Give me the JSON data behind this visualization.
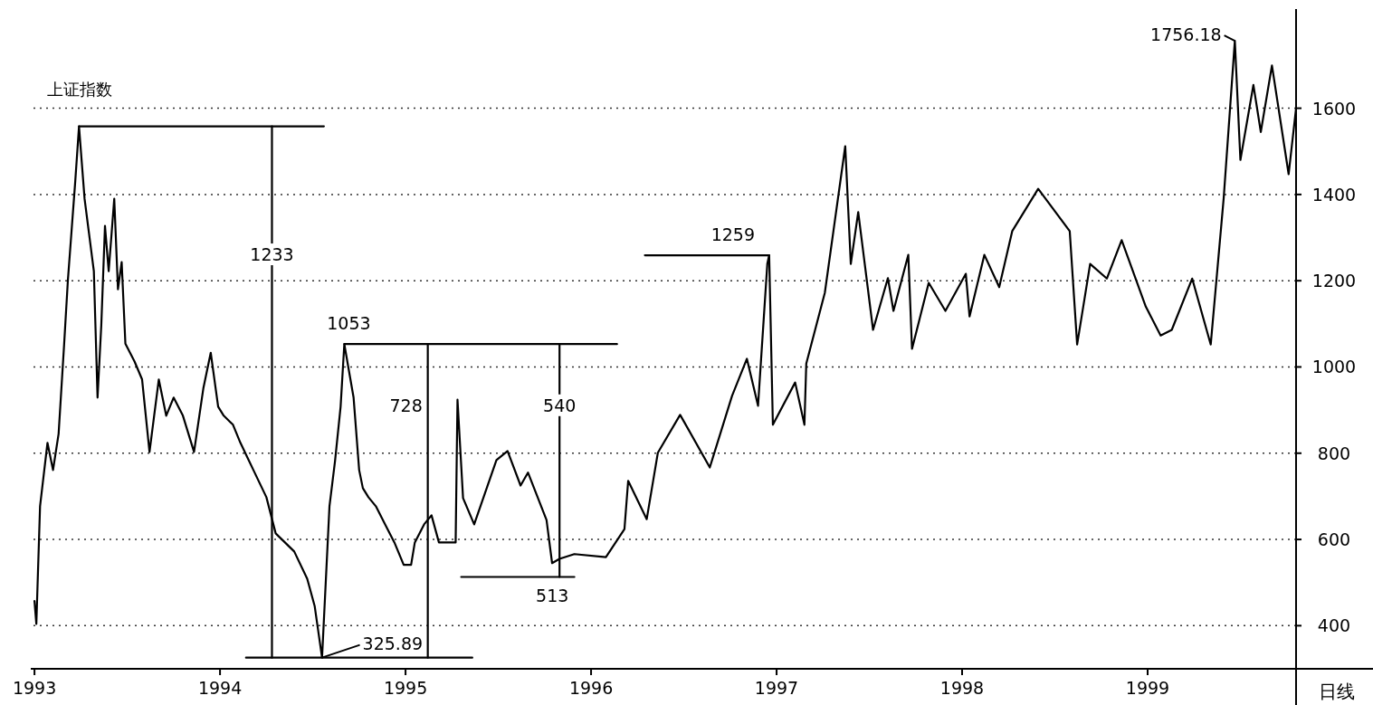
{
  "chart_data": {
    "type": "line",
    "title": "上证指数",
    "x": [
      1993.0,
      1993.01,
      1993.03,
      1993.07,
      1993.1,
      1993.13,
      1993.16,
      1993.18,
      1993.22,
      1993.24,
      1993.27,
      1993.32,
      1993.34,
      1993.36,
      1993.38,
      1993.4,
      1993.43,
      1993.45,
      1993.47,
      1993.49,
      1993.54,
      1993.58,
      1993.62,
      1993.67,
      1993.71,
      1993.75,
      1993.8,
      1993.86,
      1993.91,
      1993.95,
      1993.99,
      1994.02,
      1994.07,
      1994.11,
      1994.18,
      1994.25,
      1994.3,
      1994.35,
      1994.4,
      1994.47,
      1994.51,
      1994.55,
      1994.59,
      1994.62,
      1994.65,
      1994.67,
      1994.72,
      1994.75,
      1994.77,
      1994.8,
      1994.84,
      1994.89,
      1994.94,
      1994.99,
      1995.03,
      1995.05,
      1995.1,
      1995.14,
      1995.18,
      1995.27,
      1995.28,
      1995.31,
      1995.37,
      1995.49,
      1995.55,
      1995.62,
      1995.66,
      1995.76,
      1995.79,
      1995.83,
      1995.91,
      1996.08,
      1996.18,
      1996.2,
      1996.3,
      1996.36,
      1996.48,
      1996.64,
      1996.76,
      1996.84,
      1996.9,
      1996.95,
      1996.96,
      1996.98,
      1997.1,
      1997.15,
      1997.16,
      1997.26,
      1997.37,
      1997.4,
      1997.44,
      1997.52,
      1997.6,
      1997.63,
      1997.71,
      1997.73,
      1997.82,
      1997.91,
      1998.02,
      1998.04,
      1998.12,
      1998.2,
      1998.27,
      1998.41,
      1998.58,
      1998.62,
      1998.69,
      1998.78,
      1998.86,
      1998.99,
      1999.07,
      1999.13,
      1999.24,
      1999.34,
      1999.41,
      1999.47,
      1999.5,
      1999.57,
      1999.61,
      1999.67,
      1999.76,
      1999.8
    ],
    "series": [
      {
        "color": "#000000",
        "values": [
          457,
          404,
          677,
          824,
          761,
          845,
          1054,
          1201,
          1432,
          1558,
          1390,
          1222,
          929,
          1096,
          1327,
          1222,
          1390,
          1180,
          1243,
          1054,
          1012,
          971,
          803,
          971,
          887,
          929,
          887,
          803,
          950,
          1033,
          908,
          887,
          866,
          824,
          761,
          698,
          614,
          593,
          572,
          509,
          446,
          325.89,
          677,
          782,
          908,
          1053,
          929,
          761,
          719,
          698,
          677,
          635,
          593,
          541,
          541,
          593,
          635,
          656,
          593,
          593,
          924,
          696,
          635,
          784,
          805,
          725,
          755,
          645,
          545,
          555,
          566,
          559,
          624,
          736,
          647,
          801,
          889,
          767,
          933,
          1019,
          910,
          1239,
          1259,
          866,
          964,
          866,
          1008,
          1172,
          1512,
          1239,
          1359,
          1086,
          1206,
          1130,
          1260,
          1042,
          1195,
          1130,
          1216,
          1117,
          1260,
          1185,
          1315,
          1413,
          1315,
          1052,
          1239,
          1205,
          1294,
          1140,
          1073,
          1086,
          1205,
          1052,
          1392,
          1756.18,
          1480,
          1654,
          1545,
          1699,
          1447,
          1600
        ]
      },
      {
        "type": "line",
        "color": "#000000",
        "x": [
          1993.24,
          1994.56
        ],
        "values": [
          1558,
          1558
        ]
      },
      {
        "type": "line",
        "color": "#000000",
        "x": [
          1994.14,
          1995.36
        ],
        "values": [
          325.89,
          325.89
        ]
      },
      {
        "type": "line",
        "color": "#000000",
        "x": [
          1994.67,
          1996.14
        ],
        "values": [
          1053,
          1053
        ]
      },
      {
        "type": "line",
        "color": "#000000",
        "x": [
          1995.3,
          1995.91
        ],
        "values": [
          513,
          513
        ]
      },
      {
        "type": "line",
        "color": "#000000",
        "x": [
          1996.29,
          1996.96
        ],
        "values": [
          1259,
          1259
        ]
      },
      {
        "type": "line",
        "color": "#000000",
        "x": [
          1994.28,
          1994.28
        ],
        "values": [
          325.89,
          1558
        ]
      },
      {
        "type": "line",
        "color": "#000000",
        "x": [
          1995.12,
          1995.12
        ],
        "values": [
          325.89,
          1053
        ]
      },
      {
        "type": "line",
        "color": "#000000",
        "x": [
          1995.83,
          1995.83
        ],
        "values": [
          513,
          1053
        ]
      }
    ],
    "xlim": [
      1992.98,
      1999.8
    ],
    "ylim": [
      300,
      1830
    ],
    "xticks": [
      1993,
      1994,
      1995,
      1996,
      1997,
      1998,
      1999
    ],
    "yticks": [
      400,
      600,
      800,
      1000,
      1200,
      1400,
      1600
    ],
    "grid": "y",
    "annotations": [
      {
        "text": "1233",
        "x": 1994.28,
        "y": 1258
      },
      {
        "text": "1053",
        "x": 1994.67,
        "y": 1053
      },
      {
        "text": "728",
        "x": 1995.12,
        "y": 908
      },
      {
        "text": "540",
        "x": 1995.83,
        "y": 908
      },
      {
        "text": "513",
        "x": 1995.83,
        "y": 513
      },
      {
        "text": "325.89",
        "x": 1994.55,
        "y": 325.89
      },
      {
        "text": "1259",
        "x": 1996.96,
        "y": 1259
      },
      {
        "text": "1756.18",
        "x": 1999.47,
        "y": 1756.18
      },
      "日线"
    ]
  }
}
